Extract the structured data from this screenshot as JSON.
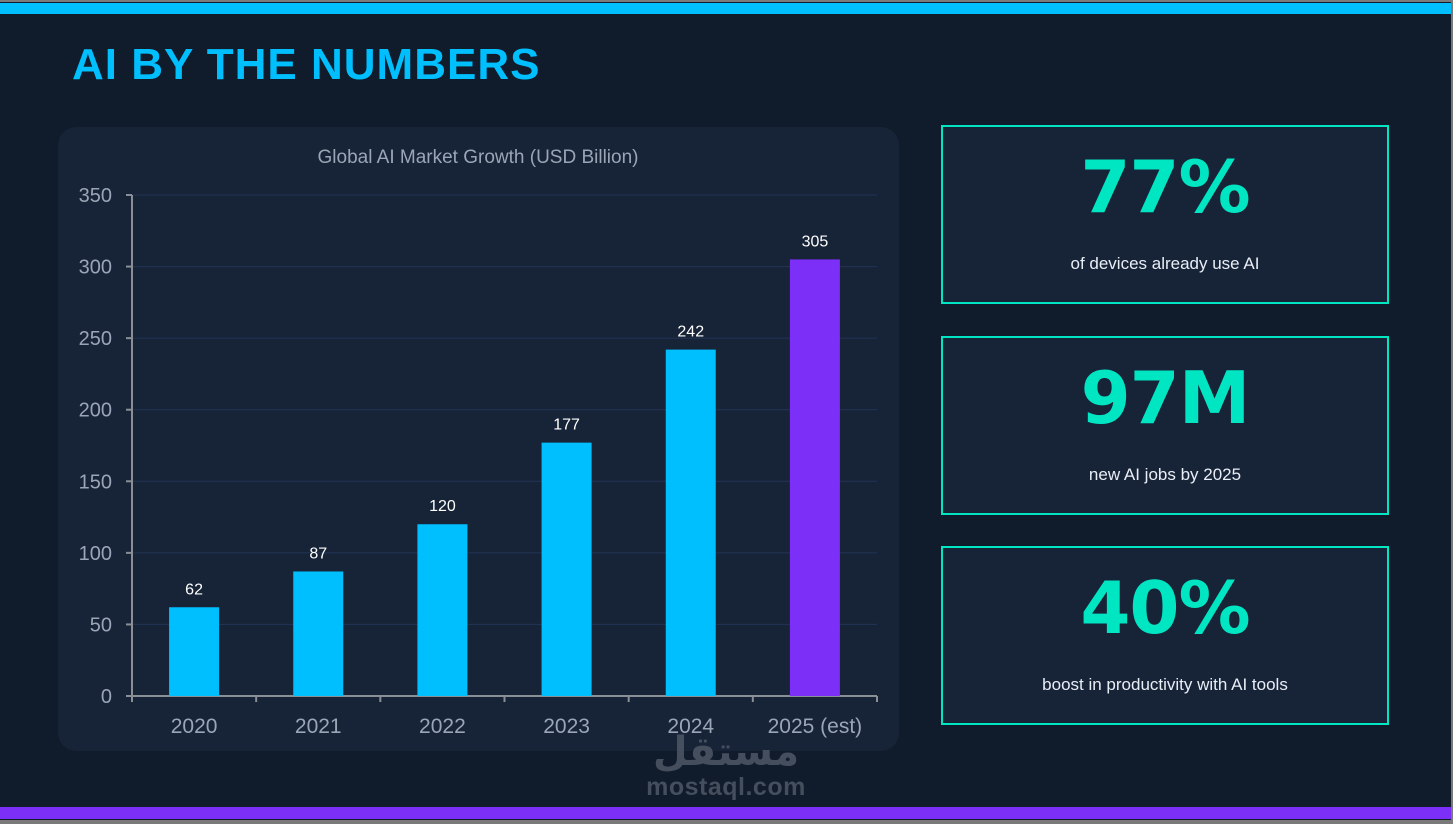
{
  "slide": {
    "title": "AI BY THE NUMBERS",
    "colors": {
      "background": "#101b2b",
      "card": "#172337",
      "accent_cyan": "#00bfff",
      "accent_purple": "#7b2ff7",
      "stat_teal": "#00e6c3"
    }
  },
  "chart_data": {
    "type": "bar",
    "title": "Global AI Market Growth (USD Billion)",
    "xlabel": "",
    "ylabel": "",
    "categories": [
      "2020",
      "2021",
      "2022",
      "2023",
      "2024",
      "2025 (est)"
    ],
    "values": [
      62,
      87,
      120,
      177,
      242,
      305
    ],
    "data_labels": [
      "62",
      "87",
      "120",
      "177",
      "242",
      "305"
    ],
    "bar_colors": [
      "#00bfff",
      "#00bfff",
      "#00bfff",
      "#00bfff",
      "#00bfff",
      "#7b2ff7"
    ],
    "ylim": [
      0,
      350
    ],
    "yticks": [
      0,
      50,
      100,
      150,
      200,
      250,
      300,
      350
    ],
    "ytick_labels": [
      "0",
      "50",
      "100",
      "150",
      "200",
      "250",
      "300",
      "350"
    ],
    "grid": true,
    "legend": "none"
  },
  "stats": [
    {
      "value": "77%",
      "label": "of devices already use AI"
    },
    {
      "value": "97M",
      "label": "new AI jobs by 2025"
    },
    {
      "value": "40%",
      "label": "boost in productivity with AI tools"
    }
  ],
  "watermark": {
    "arabic": "مستقل",
    "latin": "mostaql.com"
  }
}
